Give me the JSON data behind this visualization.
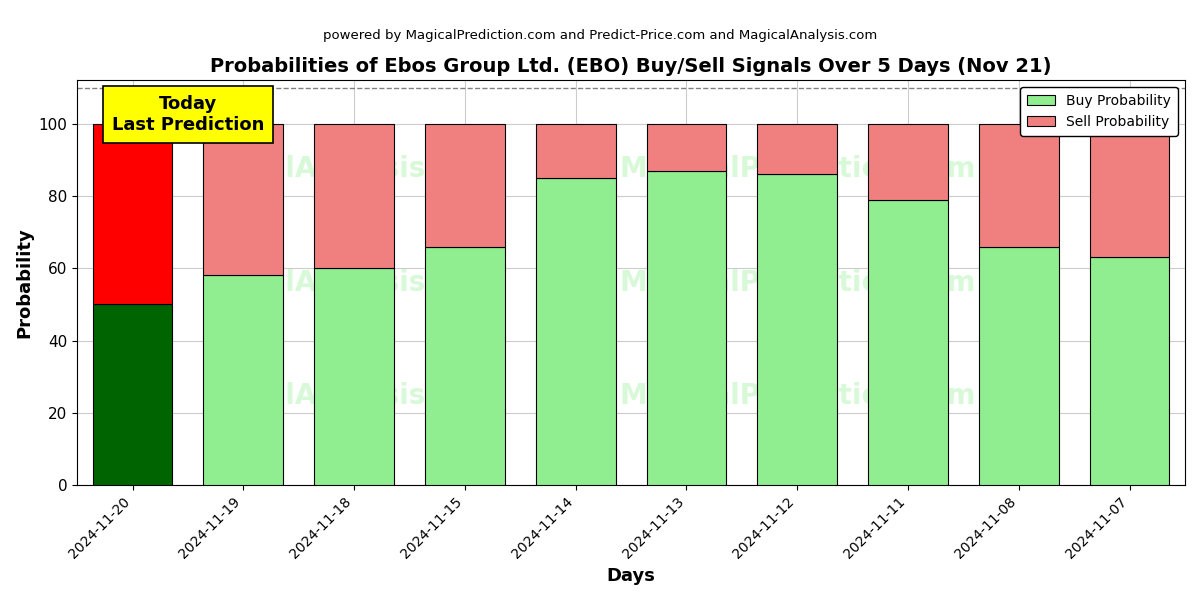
{
  "title": "Probabilities of Ebos Group Ltd. (EBO) Buy/Sell Signals Over 5 Days (Nov 21)",
  "subtitle": "powered by MagicalPrediction.com and Predict-Price.com and MagicalAnalysis.com",
  "xlabel": "Days",
  "ylabel": "Probability",
  "categories": [
    "2024-11-20",
    "2024-11-19",
    "2024-11-18",
    "2024-11-15",
    "2024-11-14",
    "2024-11-13",
    "2024-11-12",
    "2024-11-11",
    "2024-11-08",
    "2024-11-07"
  ],
  "buy_values": [
    50,
    58,
    60,
    66,
    85,
    87,
    86,
    79,
    66,
    63
  ],
  "sell_values": [
    50,
    42,
    40,
    34,
    15,
    13,
    14,
    21,
    34,
    37
  ],
  "today_bar_buy_color": "#006400",
  "today_bar_sell_color": "#FF0000",
  "normal_bar_buy_color": "#90EE90",
  "normal_bar_sell_color": "#F08080",
  "bar_edge_color": "#000000",
  "today_annotation_bg": "#FFFF00",
  "today_annotation_text": "Today\nLast Prediction",
  "legend_buy_label": "Buy Probability",
  "legend_sell_label": "Sell Probability",
  "ylim": [
    0,
    112
  ],
  "yticks": [
    0,
    20,
    40,
    60,
    80,
    100
  ],
  "dashed_line_y": 110,
  "watermark_line1_left": "calAnalysis.com",
  "watermark_line1_right": "MagicalPrediction.com",
  "watermark_line2_left": "calAnalysis.com",
  "watermark_line2_right": "MagicalPrediction.com",
  "figsize": [
    12,
    6
  ],
  "dpi": 100,
  "bar_width": 0.72,
  "facecolor": "#ffffff",
  "grid_color": "#cccccc"
}
